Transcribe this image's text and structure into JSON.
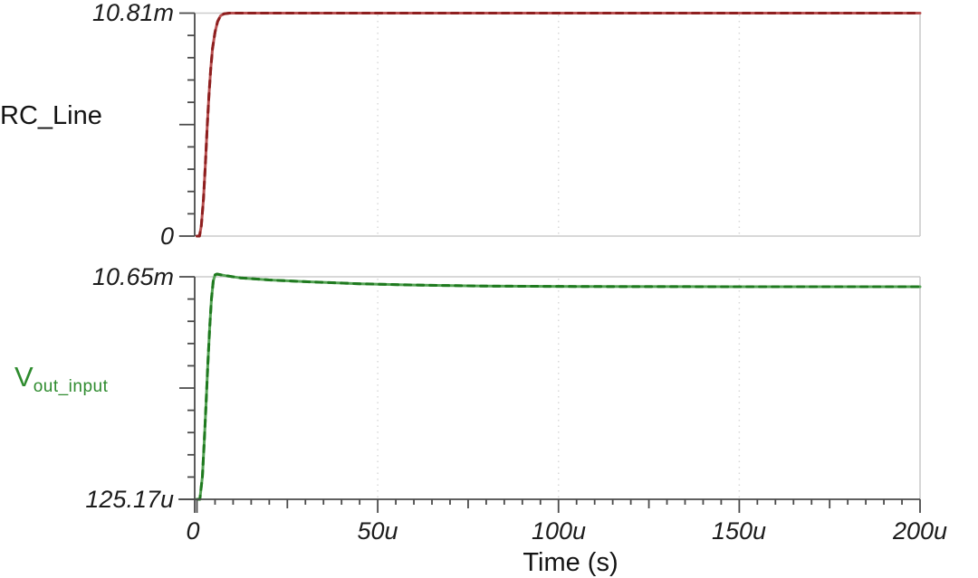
{
  "chart_data": {
    "type": "line",
    "title": "",
    "xlabel": "Time (s)",
    "xlim_us": [
      0,
      200
    ],
    "x_ticks": [
      "0",
      "50u",
      "100u",
      "150u",
      "200u"
    ],
    "x_tick_values_us": [
      0,
      50,
      100,
      150,
      200
    ],
    "x_minor_tick_step_us": 5,
    "grid": "vertical dotted gridlines at 50u, 100u, 150u",
    "legend_position": "left of each panel",
    "panels": [
      {
        "signal": "RC_Line",
        "y_top_label": "10.81m",
        "y_bottom_label": "0",
        "ylim_mv": [
          0,
          10.81
        ],
        "color_dash": "#8e1f1f",
        "color_base": "#b85050",
        "points_us_mv": [
          [
            0,
            0
          ],
          [
            0.7,
            0
          ],
          [
            1.2,
            0.5
          ],
          [
            1.8,
            1.8
          ],
          [
            2.3,
            3.4
          ],
          [
            2.8,
            5.2
          ],
          [
            3.3,
            6.8
          ],
          [
            3.8,
            8.1
          ],
          [
            4.3,
            9.1
          ],
          [
            5,
            9.9
          ],
          [
            5.7,
            10.4
          ],
          [
            6.5,
            10.68
          ],
          [
            7.5,
            10.78
          ],
          [
            9,
            10.81
          ],
          [
            15,
            10.81
          ],
          [
            50,
            10.81
          ],
          [
            100,
            10.81
          ],
          [
            150,
            10.81
          ],
          [
            200,
            10.81
          ]
        ]
      },
      {
        "signal": "V_out_input",
        "signal_main": "V",
        "signal_sub": "out_input",
        "y_top_label": "10.65m",
        "y_bottom_label": "125.17u",
        "ylim_mv": [
          0.12517,
          10.65
        ],
        "color_dash": "#1f7a1f",
        "color_base": "#55a355",
        "points_us_mv": [
          [
            0,
            0.12517
          ],
          [
            0.8,
            0.12517
          ],
          [
            1.5,
            1.2
          ],
          [
            2,
            2.8
          ],
          [
            2.5,
            4.6
          ],
          [
            3,
            6.5
          ],
          [
            3.5,
            8.2
          ],
          [
            4,
            9.6
          ],
          [
            4.5,
            10.45
          ],
          [
            5,
            10.74
          ],
          [
            5.5,
            10.78
          ],
          [
            6,
            10.76
          ],
          [
            8,
            10.7
          ],
          [
            12,
            10.6
          ],
          [
            20,
            10.5
          ],
          [
            30,
            10.42
          ],
          [
            45,
            10.32
          ],
          [
            60,
            10.26
          ],
          [
            80,
            10.21
          ],
          [
            110,
            10.19
          ],
          [
            150,
            10.18
          ],
          [
            200,
            10.18
          ]
        ]
      }
    ],
    "axis_colors": {
      "axis": "#4a4a4a",
      "frame": "#cccccc",
      "grid": "#d9d9d9"
    }
  }
}
